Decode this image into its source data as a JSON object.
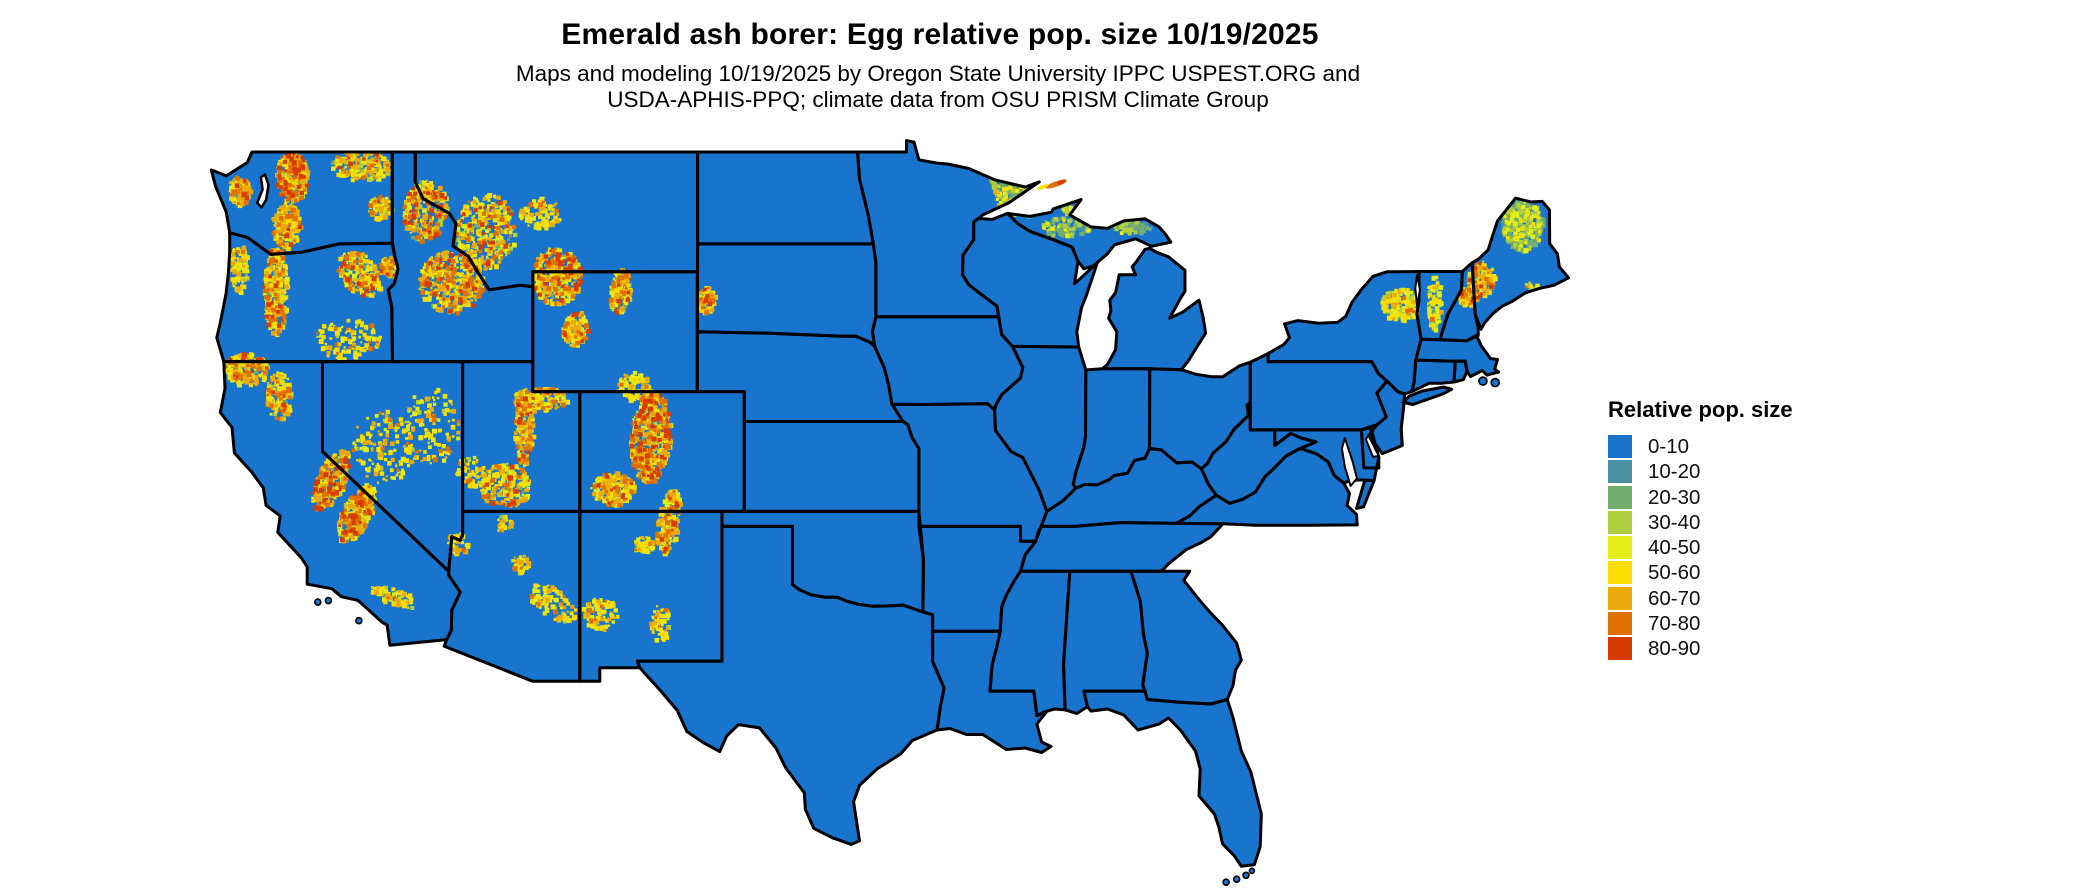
{
  "header": {
    "title": "Emerald ash borer: Egg relative pop. size 10/19/2025",
    "subtitle_line1": "Maps and modeling 10/19/2025 by Oregon State University IPPC USPEST.ORG and",
    "subtitle_line2": "USDA-APHIS-PPQ; climate data from OSU PRISM Climate Group"
  },
  "legend": {
    "title": "Relative pop. size",
    "items": [
      {
        "label": "0-10",
        "color": "#1874CD"
      },
      {
        "label": "10-20",
        "color": "#4A90A2"
      },
      {
        "label": "20-30",
        "color": "#72AE6C"
      },
      {
        "label": "30-40",
        "color": "#AFCF3E"
      },
      {
        "label": "40-50",
        "color": "#E5EC16"
      },
      {
        "label": "50-60",
        "color": "#F7DD00"
      },
      {
        "label": "60-70",
        "color": "#ECA90B"
      },
      {
        "label": "70-80",
        "color": "#E07000"
      },
      {
        "label": "80-90",
        "color": "#D83B00"
      }
    ]
  },
  "map": {
    "region": "Contiguous United States",
    "base_fill": "#1874CD",
    "border_color": "#000000",
    "water_color": "#FFFFFF"
  }
}
